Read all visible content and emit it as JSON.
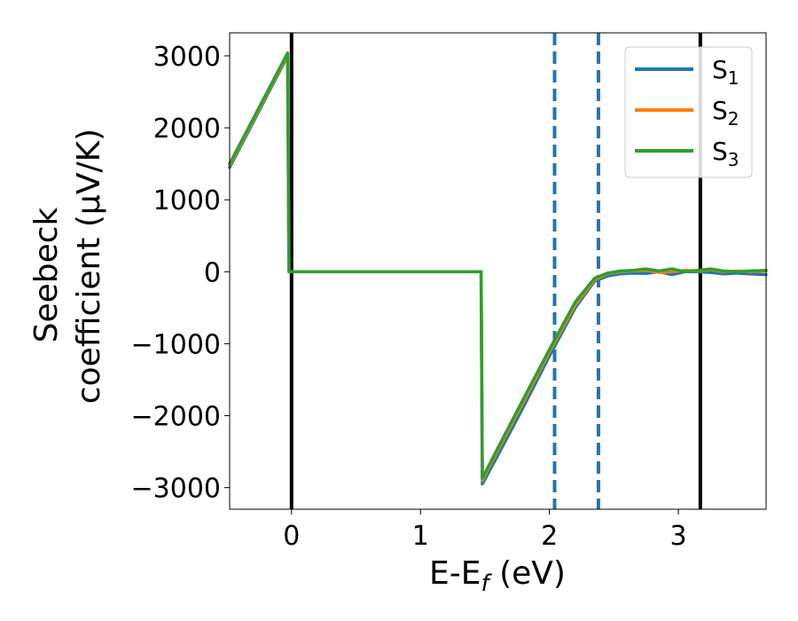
{
  "chart_data": {
    "type": "line",
    "title": "",
    "xlabel": "E-E_f (eV)",
    "xlabel_parts": {
      "main": "E-E",
      "sub": "f",
      "unit": " (eV)"
    },
    "ylabel_lines": [
      "Seebeck",
      "coefficient  (μV/K)"
    ],
    "xlim": [
      -0.48,
      3.68
    ],
    "ylim": [
      -3300,
      3320
    ],
    "xticks": [
      0,
      1,
      2,
      3
    ],
    "xtick_labels": [
      "0",
      "1",
      "2",
      "3"
    ],
    "yticks": [
      3000,
      2000,
      1000,
      0,
      -1000,
      -2000,
      -3000
    ],
    "ytick_labels": [
      "3000",
      "2000",
      "1000",
      "0",
      "−1000",
      "−2000",
      "−3000"
    ],
    "grid": false,
    "legend_position": "top-right",
    "series": [
      {
        "name": "S_1",
        "legend_label": {
          "main": "S",
          "sub": "1"
        },
        "color": "#1f77b4",
        "x": [
          -0.48,
          -0.03,
          -0.02,
          1.47,
          1.48,
          1.6,
          1.8,
          2.0,
          2.2,
          2.35,
          2.45,
          2.55,
          2.65,
          2.75,
          2.85,
          2.95,
          3.05,
          3.15,
          3.25,
          3.35,
          3.45,
          3.55,
          3.68
        ],
        "y": [
          1450,
          3000,
          0,
          0,
          -2950,
          -2550,
          -1870,
          -1170,
          -500,
          -130,
          -60,
          -30,
          -20,
          -25,
          0,
          -40,
          0,
          0,
          -10,
          -30,
          -20,
          -30,
          -40
        ]
      },
      {
        "name": "S_2",
        "legend_label": {
          "main": "S",
          "sub": "2"
        },
        "color": "#ff7f0e",
        "x": [
          -0.48,
          -0.03,
          -0.02,
          1.47,
          1.48,
          1.6,
          1.8,
          2.0,
          2.2,
          2.35,
          2.45,
          2.55,
          2.65,
          2.75,
          2.85,
          2.95,
          3.05,
          3.15,
          3.25,
          3.35,
          3.45,
          3.55,
          3.68
        ],
        "y": [
          1480,
          3020,
          0,
          0,
          -2900,
          -2480,
          -1800,
          -1110,
          -460,
          -110,
          -30,
          0,
          10,
          20,
          -10,
          0,
          20,
          10,
          30,
          0,
          10,
          0,
          10
        ]
      },
      {
        "name": "S_3",
        "legend_label": {
          "main": "S",
          "sub": "3"
        },
        "color": "#2ca02c",
        "x": [
          -0.48,
          -0.03,
          -0.02,
          1.47,
          1.48,
          1.6,
          1.8,
          2.0,
          2.2,
          2.35,
          2.45,
          2.55,
          2.65,
          2.75,
          2.85,
          2.95,
          3.05,
          3.15,
          3.25,
          3.35,
          3.45,
          3.55,
          3.68
        ],
        "y": [
          1500,
          3040,
          0,
          0,
          -2870,
          -2450,
          -1760,
          -1080,
          -420,
          -90,
          -20,
          10,
          20,
          40,
          10,
          40,
          0,
          20,
          40,
          10,
          0,
          10,
          20
        ]
      }
    ],
    "vertical_lines": [
      {
        "x": 0.0,
        "color": "#000000",
        "style": "solid"
      },
      {
        "x": 2.04,
        "color": "#1f77b4",
        "style": "dashed"
      },
      {
        "x": 2.38,
        "color": "#1f77b4",
        "style": "dashed"
      },
      {
        "x": 3.17,
        "color": "#000000",
        "style": "solid"
      }
    ]
  }
}
